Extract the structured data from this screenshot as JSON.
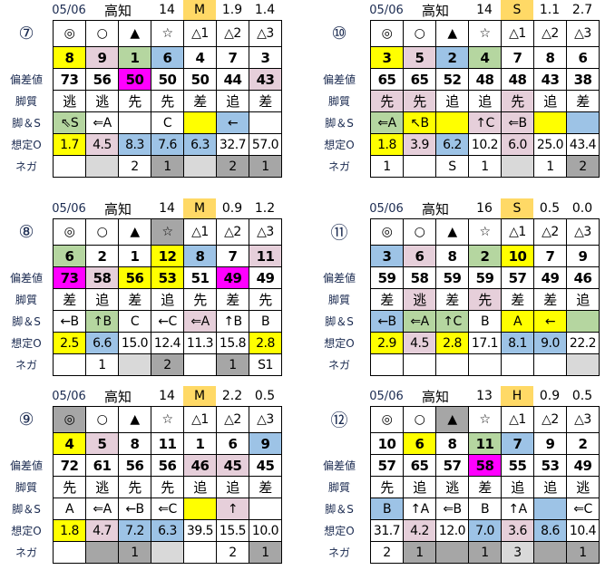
{
  "palette": {
    "y": "#FFFF00",
    "p": "#E6CFDA",
    "g": "#B5D6A0",
    "b": "#9DC3E6",
    "m": "#FF00FF",
    "dg": "#A6A6A6",
    "lg": "#D9D9D9",
    "": "#FFFFFF"
  },
  "row_labels": [
    "偏差値",
    "脚質",
    "脚＆S",
    "想定O",
    "ネガ"
  ],
  "tables": [
    {
      "label": "⑦",
      "date": "05/06",
      "venue": "高知",
      "count": "14",
      "grade": "M",
      "v1": "1.9",
      "v2": "1.4",
      "rows": [
        [
          [
            "◎",
            ""
          ],
          [
            "○",
            ""
          ],
          [
            "▲",
            ""
          ],
          [
            "☆",
            ""
          ],
          [
            "△1",
            ""
          ],
          [
            "△2",
            ""
          ],
          [
            "△3",
            ""
          ]
        ],
        [
          [
            "8",
            "y"
          ],
          [
            "9",
            "p"
          ],
          [
            "1",
            "g"
          ],
          [
            "6",
            "b"
          ],
          [
            "4",
            ""
          ],
          [
            "7",
            ""
          ],
          [
            "3",
            ""
          ]
        ],
        [
          [
            "73",
            ""
          ],
          [
            "56",
            ""
          ],
          [
            "50",
            "m"
          ],
          [
            "50",
            ""
          ],
          [
            "50",
            ""
          ],
          [
            "44",
            ""
          ],
          [
            "43",
            "p"
          ]
        ],
        [
          [
            "逃",
            ""
          ],
          [
            "逃",
            ""
          ],
          [
            "先",
            ""
          ],
          [
            "先",
            ""
          ],
          [
            "差",
            ""
          ],
          [
            "追",
            ""
          ],
          [
            "差",
            ""
          ]
        ],
        [
          [
            "⇖S",
            "g"
          ],
          [
            "⇐A",
            ""
          ],
          [
            "",
            ""
          ],
          [
            "C",
            ""
          ],
          [
            "",
            "y"
          ],
          [
            "←",
            "b"
          ],
          [
            "",
            ""
          ]
        ],
        [
          [
            "1.7",
            "y"
          ],
          [
            "4.5",
            "p"
          ],
          [
            "8.3",
            "b"
          ],
          [
            "7.6",
            "b"
          ],
          [
            "6.3",
            "b"
          ],
          [
            "32.7",
            ""
          ],
          [
            "57.0",
            ""
          ]
        ],
        [
          [
            "",
            ""
          ],
          [
            "",
            "lg"
          ],
          [
            "2",
            ""
          ],
          [
            "1",
            "dg"
          ],
          [
            "",
            "lg"
          ],
          [
            "2",
            "dg"
          ],
          [
            "1",
            "dg"
          ]
        ]
      ]
    },
    {
      "label": "⑩",
      "date": "05/06",
      "venue": "高知",
      "count": "14",
      "grade": "S",
      "v1": "1.1",
      "v2": "2.7",
      "rows": [
        [
          [
            "◎",
            ""
          ],
          [
            "○",
            ""
          ],
          [
            "▲",
            ""
          ],
          [
            "☆",
            ""
          ],
          [
            "△1",
            ""
          ],
          [
            "△2",
            ""
          ],
          [
            "△3",
            ""
          ]
        ],
        [
          [
            "3",
            "y"
          ],
          [
            "5",
            "p"
          ],
          [
            "2",
            "b"
          ],
          [
            "4",
            "g"
          ],
          [
            "7",
            ""
          ],
          [
            "8",
            ""
          ],
          [
            "6",
            ""
          ]
        ],
        [
          [
            "65",
            ""
          ],
          [
            "65",
            ""
          ],
          [
            "52",
            ""
          ],
          [
            "48",
            ""
          ],
          [
            "48",
            ""
          ],
          [
            "43",
            ""
          ],
          [
            "38",
            ""
          ]
        ],
        [
          [
            "先",
            "p"
          ],
          [
            "先",
            "p"
          ],
          [
            "追",
            ""
          ],
          [
            "追",
            ""
          ],
          [
            "先",
            "p"
          ],
          [
            "追",
            ""
          ],
          [
            "差",
            ""
          ]
        ],
        [
          [
            "⇐A",
            "g"
          ],
          [
            "↖B",
            "y"
          ],
          [
            "",
            "y"
          ],
          [
            "↑C",
            "p"
          ],
          [
            "⇐B",
            "p"
          ],
          [
            "",
            "y"
          ],
          [
            "",
            "b"
          ]
        ],
        [
          [
            "1.8",
            "y"
          ],
          [
            "3.9",
            "p"
          ],
          [
            "6.2",
            "b"
          ],
          [
            "10.2",
            ""
          ],
          [
            "6.0",
            "p"
          ],
          [
            "25.0",
            ""
          ],
          [
            "43.4",
            ""
          ]
        ],
        [
          [
            "1",
            ""
          ],
          [
            "",
            ""
          ],
          [
            "S",
            ""
          ],
          [
            "1",
            ""
          ],
          [
            "",
            "lg"
          ],
          [
            "1",
            ""
          ],
          [
            "2",
            "dg"
          ]
        ]
      ]
    },
    {
      "label": "⑧",
      "date": "05/06",
      "venue": "高知",
      "count": "14",
      "grade": "M",
      "v1": "0.9",
      "v2": "1.2",
      "rows": [
        [
          [
            "◎",
            ""
          ],
          [
            "○",
            ""
          ],
          [
            "▲",
            ""
          ],
          [
            "☆",
            "dg"
          ],
          [
            "△1",
            ""
          ],
          [
            "△2",
            ""
          ],
          [
            "△3",
            ""
          ]
        ],
        [
          [
            "6",
            "g"
          ],
          [
            "2",
            ""
          ],
          [
            "1",
            ""
          ],
          [
            "12",
            "y"
          ],
          [
            "8",
            "b"
          ],
          [
            "7",
            ""
          ],
          [
            "11",
            "p"
          ]
        ],
        [
          [
            "73",
            "m"
          ],
          [
            "58",
            "p"
          ],
          [
            "56",
            "y"
          ],
          [
            "53",
            "y"
          ],
          [
            "51",
            ""
          ],
          [
            "49",
            "m"
          ],
          [
            "49",
            ""
          ]
        ],
        [
          [
            "差",
            ""
          ],
          [
            "追",
            ""
          ],
          [
            "差",
            ""
          ],
          [
            "追",
            ""
          ],
          [
            "先",
            ""
          ],
          [
            "差",
            ""
          ],
          [
            "先",
            ""
          ]
        ],
        [
          [
            "←B",
            ""
          ],
          [
            "↑B",
            "g"
          ],
          [
            "C",
            ""
          ],
          [
            "←C",
            ""
          ],
          [
            "⇐A",
            "p"
          ],
          [
            "↑B",
            ""
          ],
          [
            "B",
            ""
          ]
        ],
        [
          [
            "2.5",
            "y"
          ],
          [
            "6.6",
            "b"
          ],
          [
            "15.0",
            ""
          ],
          [
            "12.4",
            ""
          ],
          [
            "11.3",
            ""
          ],
          [
            "15.8",
            ""
          ],
          [
            "2.8",
            "y"
          ]
        ],
        [
          [
            "",
            ""
          ],
          [
            "1",
            ""
          ],
          [
            "",
            "lg"
          ],
          [
            "2",
            "dg"
          ],
          [
            "",
            ""
          ],
          [
            "1",
            "dg"
          ],
          [
            "S1",
            ""
          ]
        ]
      ]
    },
    {
      "label": "⑪",
      "date": "05/06",
      "venue": "高知",
      "count": "16",
      "grade": "S",
      "v1": "0.5",
      "v2": "0.0",
      "rows": [
        [
          [
            "◎",
            ""
          ],
          [
            "○",
            ""
          ],
          [
            "▲",
            ""
          ],
          [
            "☆",
            ""
          ],
          [
            "△1",
            ""
          ],
          [
            "△2",
            ""
          ],
          [
            "△3",
            ""
          ]
        ],
        [
          [
            "3",
            "b"
          ],
          [
            "6",
            "p"
          ],
          [
            "8",
            ""
          ],
          [
            "2",
            "g"
          ],
          [
            "10",
            "y"
          ],
          [
            "7",
            ""
          ],
          [
            "9",
            ""
          ]
        ],
        [
          [
            "59",
            ""
          ],
          [
            "58",
            ""
          ],
          [
            "59",
            ""
          ],
          [
            "59",
            ""
          ],
          [
            "57",
            ""
          ],
          [
            "49",
            ""
          ],
          [
            "46",
            ""
          ]
        ],
        [
          [
            "差",
            ""
          ],
          [
            "逃",
            "p"
          ],
          [
            "差",
            ""
          ],
          [
            "先",
            "p"
          ],
          [
            "差",
            ""
          ],
          [
            "差",
            ""
          ],
          [
            "追",
            ""
          ]
        ],
        [
          [
            "←B",
            "b"
          ],
          [
            "⇐A",
            "g"
          ],
          [
            "↑C",
            "g"
          ],
          [
            "B",
            ""
          ],
          [
            "A",
            "y"
          ],
          [
            "←",
            "y"
          ],
          [
            "",
            "g"
          ]
        ],
        [
          [
            "2.9",
            "y"
          ],
          [
            "4.5",
            "p"
          ],
          [
            "2.8",
            "y"
          ],
          [
            "17.1",
            ""
          ],
          [
            "8.1",
            "b"
          ],
          [
            "9.0",
            "b"
          ],
          [
            "22.2",
            ""
          ]
        ],
        [
          [
            "",
            ""
          ],
          [
            "",
            ""
          ],
          [
            "",
            ""
          ],
          [
            "",
            ""
          ],
          [
            "",
            ""
          ],
          [
            "",
            ""
          ],
          [
            "",
            "lg"
          ]
        ]
      ]
    },
    {
      "label": "⑨",
      "date": "05/06",
      "venue": "高知",
      "count": "14",
      "grade": "M",
      "v1": "2.2",
      "v2": "0.5",
      "rows": [
        [
          [
            "◎",
            "dg"
          ],
          [
            "○",
            ""
          ],
          [
            "▲",
            ""
          ],
          [
            "☆",
            ""
          ],
          [
            "△1",
            ""
          ],
          [
            "△2",
            ""
          ],
          [
            "△3",
            ""
          ]
        ],
        [
          [
            "4",
            "y"
          ],
          [
            "5",
            "p"
          ],
          [
            "8",
            ""
          ],
          [
            "11",
            ""
          ],
          [
            "1",
            ""
          ],
          [
            "6",
            ""
          ],
          [
            "9",
            "b"
          ]
        ],
        [
          [
            "72",
            ""
          ],
          [
            "61",
            ""
          ],
          [
            "56",
            ""
          ],
          [
            "56",
            ""
          ],
          [
            "46",
            "p"
          ],
          [
            "45",
            "p"
          ],
          [
            "45",
            ""
          ]
        ],
        [
          [
            "先",
            ""
          ],
          [
            "逃",
            ""
          ],
          [
            "先",
            ""
          ],
          [
            "先",
            ""
          ],
          [
            "追",
            ""
          ],
          [
            "追",
            ""
          ],
          [
            "差",
            ""
          ]
        ],
        [
          [
            "A",
            ""
          ],
          [
            "⇐A",
            ""
          ],
          [
            "←B",
            ""
          ],
          [
            "⇐C",
            ""
          ],
          [
            "",
            "y"
          ],
          [
            "↑",
            "p"
          ],
          [
            "",
            ""
          ]
        ],
        [
          [
            "1.8",
            "y"
          ],
          [
            "4.7",
            "p"
          ],
          [
            "7.2",
            "b"
          ],
          [
            "6.3",
            "b"
          ],
          [
            "39.5",
            ""
          ],
          [
            "15.5",
            ""
          ],
          [
            "10.0",
            ""
          ]
        ],
        [
          [
            "",
            ""
          ],
          [
            "",
            "dg"
          ],
          [
            "1",
            "dg"
          ],
          [
            "",
            "lg"
          ],
          [
            "",
            ""
          ],
          [
            "2",
            ""
          ],
          [
            "1",
            "dg"
          ]
        ]
      ]
    },
    {
      "label": "⑫",
      "date": "05/06",
      "venue": "高知",
      "count": "13",
      "grade": "H",
      "v1": "0.9",
      "v2": "0.5",
      "rows": [
        [
          [
            "◎",
            ""
          ],
          [
            "○",
            ""
          ],
          [
            "▲",
            "dg"
          ],
          [
            "☆",
            ""
          ],
          [
            "△1",
            ""
          ],
          [
            "△2",
            ""
          ],
          [
            "△3",
            ""
          ]
        ],
        [
          [
            "10",
            ""
          ],
          [
            "6",
            "y"
          ],
          [
            "8",
            ""
          ],
          [
            "11",
            "g"
          ],
          [
            "7",
            "b"
          ],
          [
            "9",
            ""
          ],
          [
            "2",
            ""
          ]
        ],
        [
          [
            "57",
            ""
          ],
          [
            "65",
            ""
          ],
          [
            "57",
            ""
          ],
          [
            "58",
            "m"
          ],
          [
            "55",
            ""
          ],
          [
            "53",
            ""
          ],
          [
            "49",
            ""
          ]
        ],
        [
          [
            "先",
            ""
          ],
          [
            "追",
            ""
          ],
          [
            "逃",
            ""
          ],
          [
            "差",
            ""
          ],
          [
            "追",
            ""
          ],
          [
            "追",
            ""
          ],
          [
            "逃",
            ""
          ]
        ],
        [
          [
            "B",
            "b"
          ],
          [
            "↑A",
            ""
          ],
          [
            "⇐B",
            ""
          ],
          [
            "B",
            ""
          ],
          [
            "↑A",
            ""
          ],
          [
            "",
            "b"
          ],
          [
            "⇐C",
            ""
          ]
        ],
        [
          [
            "31.7",
            ""
          ],
          [
            "4.2",
            "p"
          ],
          [
            "12.0",
            ""
          ],
          [
            "7.0",
            "b"
          ],
          [
            "3.6",
            "p"
          ],
          [
            "8.6",
            "b"
          ],
          [
            "10.4",
            ""
          ]
        ],
        [
          [
            "2",
            ""
          ],
          [
            "1",
            "dg"
          ],
          [
            "",
            "dg"
          ],
          [
            "1",
            "dg"
          ],
          [
            "3",
            "lg"
          ],
          [
            "",
            "dg"
          ],
          [
            "1",
            "dg"
          ]
        ]
      ]
    }
  ]
}
